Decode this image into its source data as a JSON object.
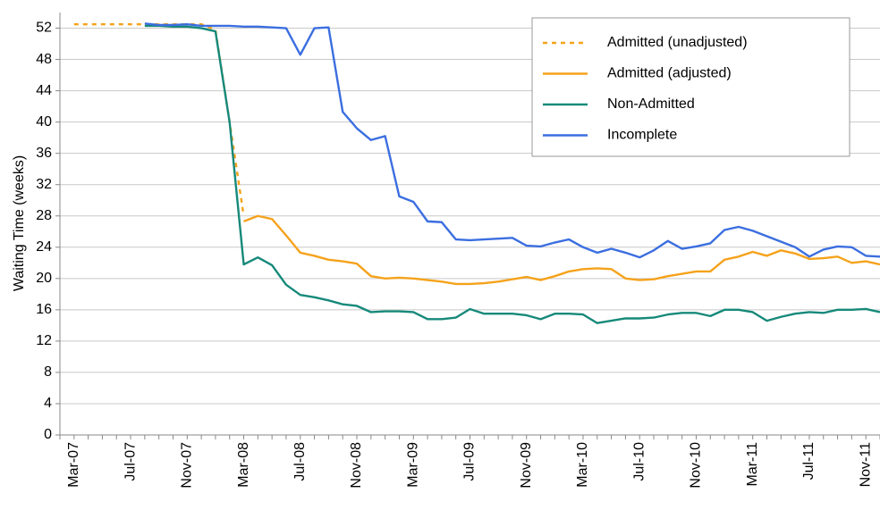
{
  "chart_data": {
    "type": "line",
    "y_label": "Waiting Time (weeks)",
    "categories": [
      null,
      "Mar-07",
      null,
      null,
      null,
      "Jul-07",
      null,
      null,
      null,
      "Nov-07",
      null,
      null,
      null,
      "Mar-08",
      null,
      null,
      null,
      "Jul-08",
      null,
      null,
      null,
      "Nov-08",
      null,
      null,
      null,
      "Mar-09",
      null,
      null,
      null,
      "Jul-09",
      null,
      null,
      null,
      "Nov-09",
      null,
      null,
      null,
      "Mar-10",
      null,
      null,
      null,
      "Jul-10",
      null,
      null,
      null,
      "Nov-10",
      null,
      null,
      null,
      "Mar-11",
      null,
      null,
      null,
      "Jul-11",
      null,
      null,
      null,
      "Nov-11",
      null
    ],
    "series": [
      {
        "name": "Admitted (unadjusted)",
        "color": "#f5a21b",
        "linestyle": "dashed",
        "values": [
          null,
          52.5,
          52.5,
          52.5,
          52.5,
          52.5,
          52.5,
          52.5,
          52.5,
          52.5,
          52.5,
          51.8,
          40.0,
          28.0,
          null,
          null,
          null,
          null,
          null,
          null,
          null,
          null,
          null,
          null,
          null,
          null,
          null,
          null,
          null,
          null,
          null,
          null,
          null,
          null,
          null,
          null,
          null,
          null,
          null,
          null,
          null,
          null,
          null,
          null,
          null,
          null,
          null,
          null,
          null,
          null,
          null,
          null,
          null,
          null,
          null,
          null,
          null,
          null,
          null
        ]
      },
      {
        "name": "Admitted (adjusted)",
        "color": "#f5a21b",
        "linestyle": "solid",
        "values": [
          null,
          null,
          null,
          null,
          null,
          null,
          null,
          null,
          null,
          null,
          null,
          null,
          null,
          27.3,
          28.0,
          27.6,
          25.5,
          23.3,
          22.9,
          22.4,
          22.2,
          21.9,
          20.3,
          20.0,
          20.1,
          20.0,
          19.8,
          19.6,
          19.3,
          19.3,
          19.4,
          19.6,
          19.9,
          20.2,
          19.8,
          20.3,
          20.9,
          21.2,
          21.3,
          21.2,
          20.0,
          19.8,
          19.9,
          20.3,
          20.6,
          20.9,
          20.9,
          22.4,
          22.8,
          23.4,
          22.9,
          23.6,
          23.2,
          22.5,
          22.6,
          22.8,
          22.0,
          22.2,
          21.8
        ]
      },
      {
        "name": "Non-Admitted",
        "color": "#16897a",
        "linestyle": "solid",
        "values": [
          null,
          null,
          null,
          null,
          null,
          null,
          52.3,
          52.3,
          52.2,
          52.2,
          52.0,
          51.6,
          40.0,
          21.8,
          22.7,
          21.7,
          19.2,
          17.9,
          17.6,
          17.2,
          16.7,
          16.5,
          15.7,
          15.8,
          15.8,
          15.7,
          14.8,
          14.8,
          15.0,
          16.1,
          15.5,
          15.5,
          15.5,
          15.3,
          14.8,
          15.5,
          15.5,
          15.4,
          14.3,
          14.6,
          14.9,
          14.9,
          15.0,
          15.4,
          15.6,
          15.6,
          15.2,
          16.0,
          16.0,
          15.7,
          14.6,
          15.1,
          15.5,
          15.7,
          15.6,
          16.0,
          16.0,
          16.1,
          15.7
        ]
      },
      {
        "name": "Incomplete",
        "color": "#3b6ee0",
        "linestyle": "solid",
        "values": [
          null,
          null,
          null,
          null,
          null,
          null,
          52.6,
          52.4,
          52.4,
          52.5,
          52.3,
          52.3,
          52.3,
          52.2,
          52.2,
          52.1,
          52.0,
          48.6,
          52.0,
          52.1,
          41.3,
          39.2,
          37.7,
          38.2,
          30.5,
          29.8,
          27.3,
          27.2,
          25.0,
          24.9,
          25.0,
          25.1,
          25.2,
          24.2,
          24.1,
          24.6,
          25.0,
          24.0,
          23.3,
          23.8,
          23.3,
          22.7,
          23.6,
          24.8,
          23.8,
          24.1,
          24.5,
          26.2,
          26.6,
          26.1,
          25.4,
          24.7,
          24.0,
          22.8,
          23.7,
          24.1,
          24.0,
          22.9,
          22.8
        ]
      }
    ],
    "ylim": [
      0,
      54
    ],
    "yticks": [
      0,
      4,
      8,
      12,
      16,
      20,
      24,
      28,
      32,
      36,
      40,
      44,
      48,
      52
    ],
    "grid": true,
    "legend": "upper right"
  }
}
